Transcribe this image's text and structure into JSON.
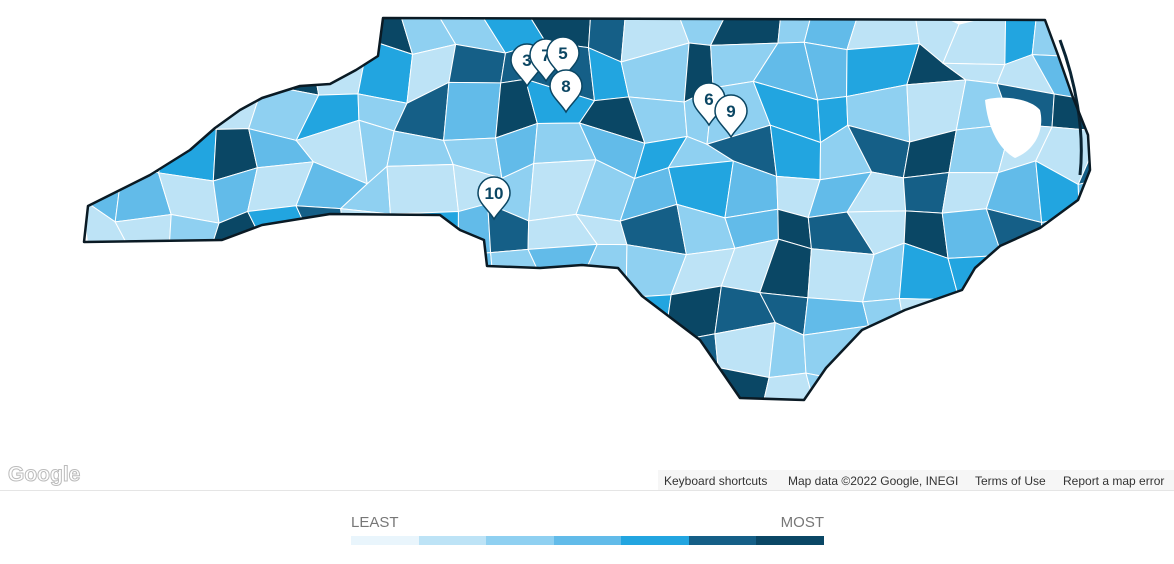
{
  "map": {
    "markers": [
      "3",
      "7",
      "5",
      "8",
      "6",
      "9",
      "10"
    ]
  },
  "attribution": {
    "logo": "Google",
    "links": [
      "Keyboard shortcuts",
      "Map data ©2022 Google, INEGI",
      "Terms of Use",
      "Report a map error"
    ]
  },
  "legend": {
    "least": "LEAST",
    "most": "MOST",
    "colors": [
      "#e9f5fc",
      "#bde3f6",
      "#8fd0f1",
      "#62bbe9",
      "#22a5e0",
      "#155f87",
      "#0a4765"
    ]
  }
}
